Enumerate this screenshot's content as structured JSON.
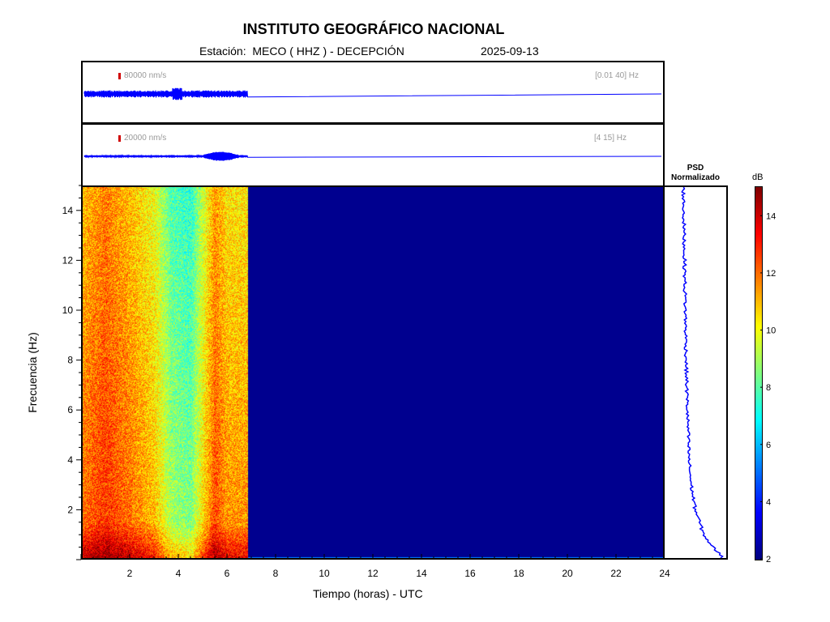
{
  "header": {
    "title": "INSTITUTO GEOGRÁFICO NACIONAL",
    "station_line": "Estación:  MECO ( HHZ ) - DECEPCIÓN",
    "date": "2025-09-13"
  },
  "trace1": {
    "scale": "80000 nm/s",
    "band": "[0.01 40] Hz",
    "color": "#0000ff"
  },
  "trace2": {
    "scale": "20000 nm/s",
    "band": "[4 15] Hz",
    "color": "#0000ff"
  },
  "psd": {
    "title_line1": "PSD",
    "title_line2": "Normalizado"
  },
  "colorbar": {
    "unit": "dB"
  },
  "chart_data": {
    "type": "heatmap",
    "title": "INSTITUTO GEOGRÁFICO NACIONAL",
    "xlabel": "Tiempo (horas) - UTC",
    "ylabel": "Frecuencia  (Hz)",
    "xlim": [
      0,
      24
    ],
    "ylim": [
      0,
      15
    ],
    "xticks": [
      2,
      4,
      6,
      8,
      10,
      12,
      14,
      16,
      18,
      20,
      22,
      24
    ],
    "yticks": [
      2,
      4,
      6,
      8,
      10,
      12,
      14
    ],
    "data_end_hour": 6.85,
    "colorbar_range": [
      2,
      15
    ],
    "colorbar_ticks": [
      2,
      4,
      6,
      8,
      10,
      12,
      14
    ],
    "colormap": "jet",
    "no_data_color": "#00008f",
    "grid": false,
    "psd_profile": {
      "freq_hz": [
        0.1,
        0.5,
        1,
        2,
        3,
        4,
        6,
        8,
        10,
        12,
        14,
        15
      ],
      "normalized": [
        1.0,
        0.75,
        0.55,
        0.35,
        0.25,
        0.2,
        0.16,
        0.13,
        0.11,
        0.09,
        0.07,
        0.06
      ]
    },
    "spectrogram_profile": {
      "hours": [
        0,
        1,
        2,
        3,
        3.7,
        4.5,
        5,
        5.5,
        6,
        6.85
      ],
      "level_db": [
        11.5,
        12.3,
        11.5,
        10.5,
        8.5,
        8.0,
        10.0,
        12.0,
        11.0,
        11.0
      ]
    }
  }
}
